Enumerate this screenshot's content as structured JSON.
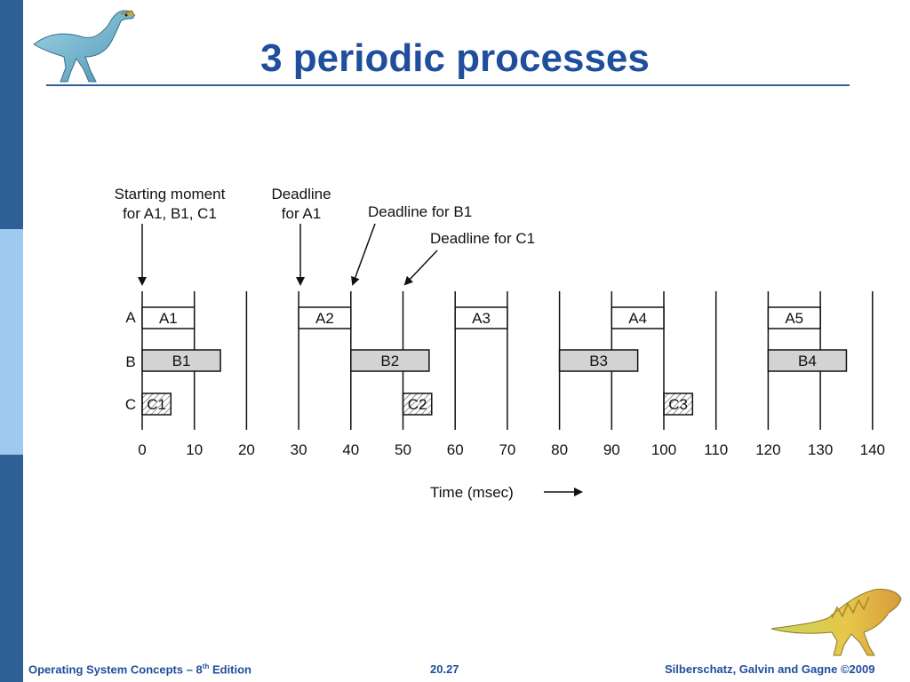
{
  "slide": {
    "title": "3 periodic processes",
    "footer": {
      "course_prefix": "Operating System Concepts – 8",
      "course_sup": "th",
      "course_suffix": " Edition",
      "page_number": "20.27",
      "copyright": "Silberschatz, Galvin and Gagne ©2009"
    }
  },
  "diagram": {
    "annotations": {
      "start_line1": "Starting moment",
      "start_line2": "for A1, B1, C1",
      "deadline_a1_line1": "Deadline",
      "deadline_a1_line2": "for A1",
      "deadline_b1": "Deadline for B1",
      "deadline_c1": "Deadline for C1"
    },
    "row_labels": [
      "A",
      "B",
      "C"
    ],
    "ticks": [
      "0",
      "10",
      "20",
      "30",
      "40",
      "50",
      "60",
      "70",
      "80",
      "90",
      "100",
      "110",
      "120",
      "130",
      "140"
    ],
    "x_label": "Time (msec)",
    "jobs": [
      {
        "label": "A1",
        "row": 0,
        "start": 0,
        "end": 10,
        "style": "white"
      },
      {
        "label": "A2",
        "row": 0,
        "start": 30,
        "end": 40,
        "style": "white"
      },
      {
        "label": "A3",
        "row": 0,
        "start": 60,
        "end": 70,
        "style": "white"
      },
      {
        "label": "A4",
        "row": 0,
        "start": 90,
        "end": 100,
        "style": "white"
      },
      {
        "label": "A5",
        "row": 0,
        "start": 120,
        "end": 130,
        "style": "white"
      },
      {
        "label": "B1",
        "row": 1,
        "start": 0,
        "end": 15,
        "style": "gray"
      },
      {
        "label": "B2",
        "row": 1,
        "start": 40,
        "end": 55,
        "style": "gray"
      },
      {
        "label": "B3",
        "row": 1,
        "start": 80,
        "end": 95,
        "style": "gray"
      },
      {
        "label": "B4",
        "row": 1,
        "start": 120,
        "end": 135,
        "style": "gray"
      },
      {
        "label": "C1",
        "row": 2,
        "start": 0,
        "end": 5.5,
        "style": "hatch"
      },
      {
        "label": "C2",
        "row": 2,
        "start": 50,
        "end": 55.5,
        "style": "hatch"
      },
      {
        "label": "C3",
        "row": 2,
        "start": 100,
        "end": 105.5,
        "style": "hatch"
      }
    ],
    "period_lines": [
      0,
      10,
      20,
      30,
      40,
      50,
      60,
      70,
      80,
      90,
      100,
      110,
      120,
      130,
      140
    ],
    "arrow_times": {
      "start": 0,
      "deadline_a1": 30,
      "deadline_b1": 40,
      "deadline_c1": 50
    }
  },
  "colors": {
    "title": "#1f4e9c",
    "sidebar_dark": "#2f6096",
    "sidebar_light": "#9fc9ef",
    "gray_job": "#d3d3d3"
  }
}
